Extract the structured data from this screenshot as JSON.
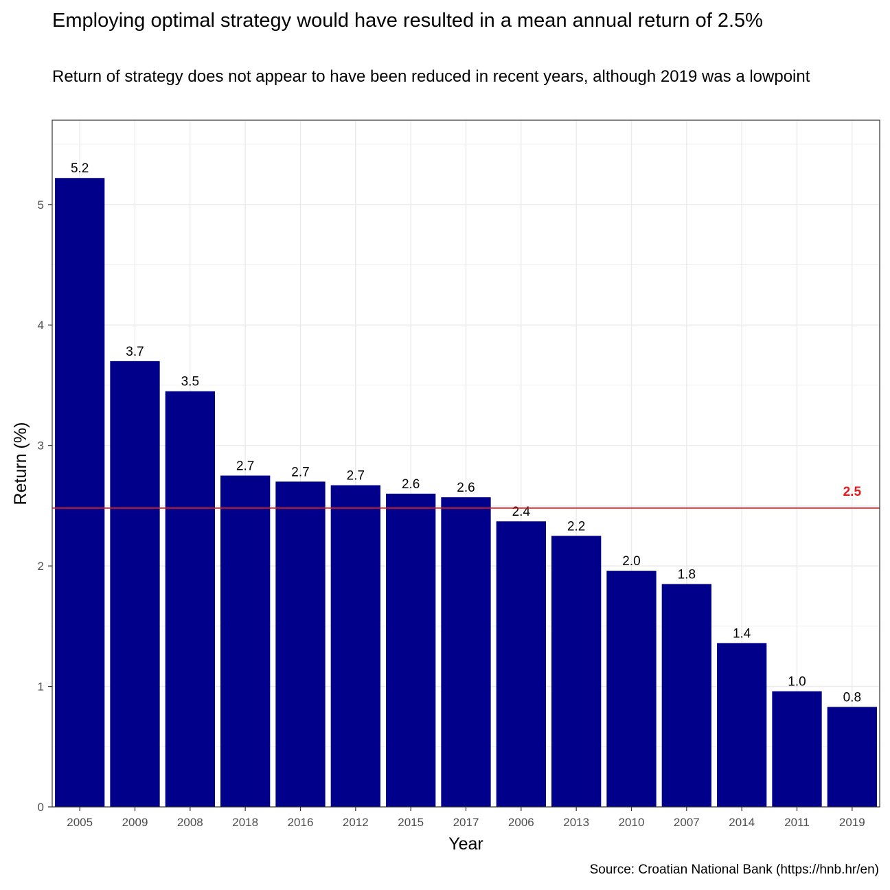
{
  "title": "Employing optimal strategy would have resulted in a mean annual return of 2.5%",
  "subtitle": "Return of strategy does not appear to have been reduced in recent years, although 2019 was a lowpoint",
  "caption": "Source: Croatian National Bank (https://hnb.hr/en)",
  "colors": {
    "bar": "#00008B",
    "mean_line": "#E41A1C",
    "grid": "#EBEBEB",
    "panel_border": "#333333"
  },
  "chart_data": {
    "type": "bar",
    "title": "Employing optimal strategy would have resulted in a mean annual return of 2.5%",
    "subtitle": "Return of strategy does not appear to have been reduced in recent years, although 2019 was a lowpoint",
    "xlabel": "Year",
    "ylabel": "Return (%)",
    "categories": [
      "2005",
      "2009",
      "2008",
      "2018",
      "2016",
      "2012",
      "2015",
      "2017",
      "2006",
      "2013",
      "2010",
      "2007",
      "2014",
      "2011",
      "2019"
    ],
    "values": [
      5.22,
      3.7,
      3.45,
      2.75,
      2.7,
      2.67,
      2.6,
      2.57,
      2.37,
      2.25,
      1.96,
      1.85,
      1.36,
      0.96,
      0.83
    ],
    "value_labels": [
      "5.2",
      "3.7",
      "3.5",
      "2.7",
      "2.7",
      "2.7",
      "2.6",
      "2.6",
      "2.4",
      "2.2",
      "2.0",
      "1.8",
      "1.4",
      "1.0",
      "0.8"
    ],
    "ylim": [
      0,
      5.7
    ],
    "y_ticks": [
      0,
      1,
      2,
      3,
      4,
      5
    ],
    "grid": true,
    "mean_line": {
      "value": 2.48,
      "label": "2.5"
    }
  }
}
